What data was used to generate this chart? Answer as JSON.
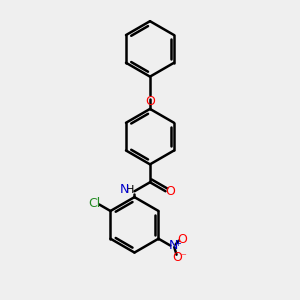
{
  "background_color": "#efefef",
  "line_color": "#000000",
  "bond_width": 1.8,
  "figsize": [
    3.0,
    3.0
  ],
  "dpi": 100,
  "ring_r": 0.085,
  "colors": {
    "C": "#000000",
    "O": "#ff0000",
    "N": "#0000cc",
    "Cl": "#228B22"
  }
}
